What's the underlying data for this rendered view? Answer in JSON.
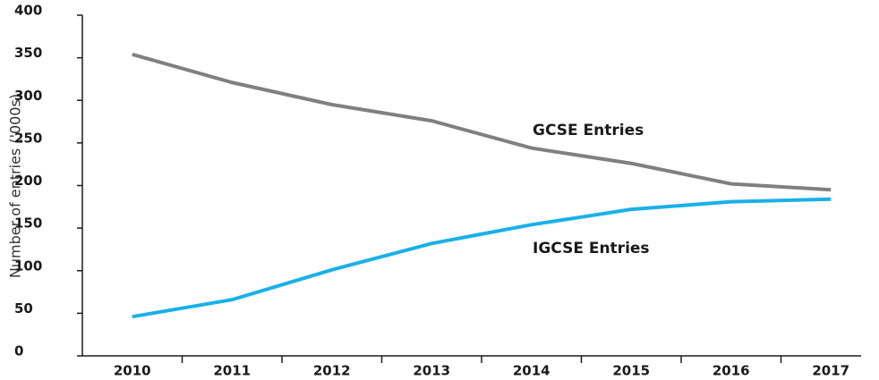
{
  "chart_data": {
    "type": "line",
    "y_label": "Number of entries ('000s)",
    "categories": [
      "2010",
      "2011",
      "2012",
      "2013",
      "2014",
      "2015",
      "2016",
      "2017"
    ],
    "series": [
      {
        "name": "GCSE Entries",
        "color": "#808080",
        "values": [
          354,
          321,
          295,
          276,
          244,
          226,
          202,
          195
        ]
      },
      {
        "name": "IGCSE Entries",
        "color": "#1ab0e8",
        "values": [
          46,
          66,
          101,
          132,
          154,
          172,
          181,
          184
        ]
      }
    ],
    "ylim": [
      0,
      400
    ],
    "yticks": [
      0,
      50,
      100,
      150,
      200,
      250,
      300,
      350,
      400
    ],
    "grid": false
  }
}
